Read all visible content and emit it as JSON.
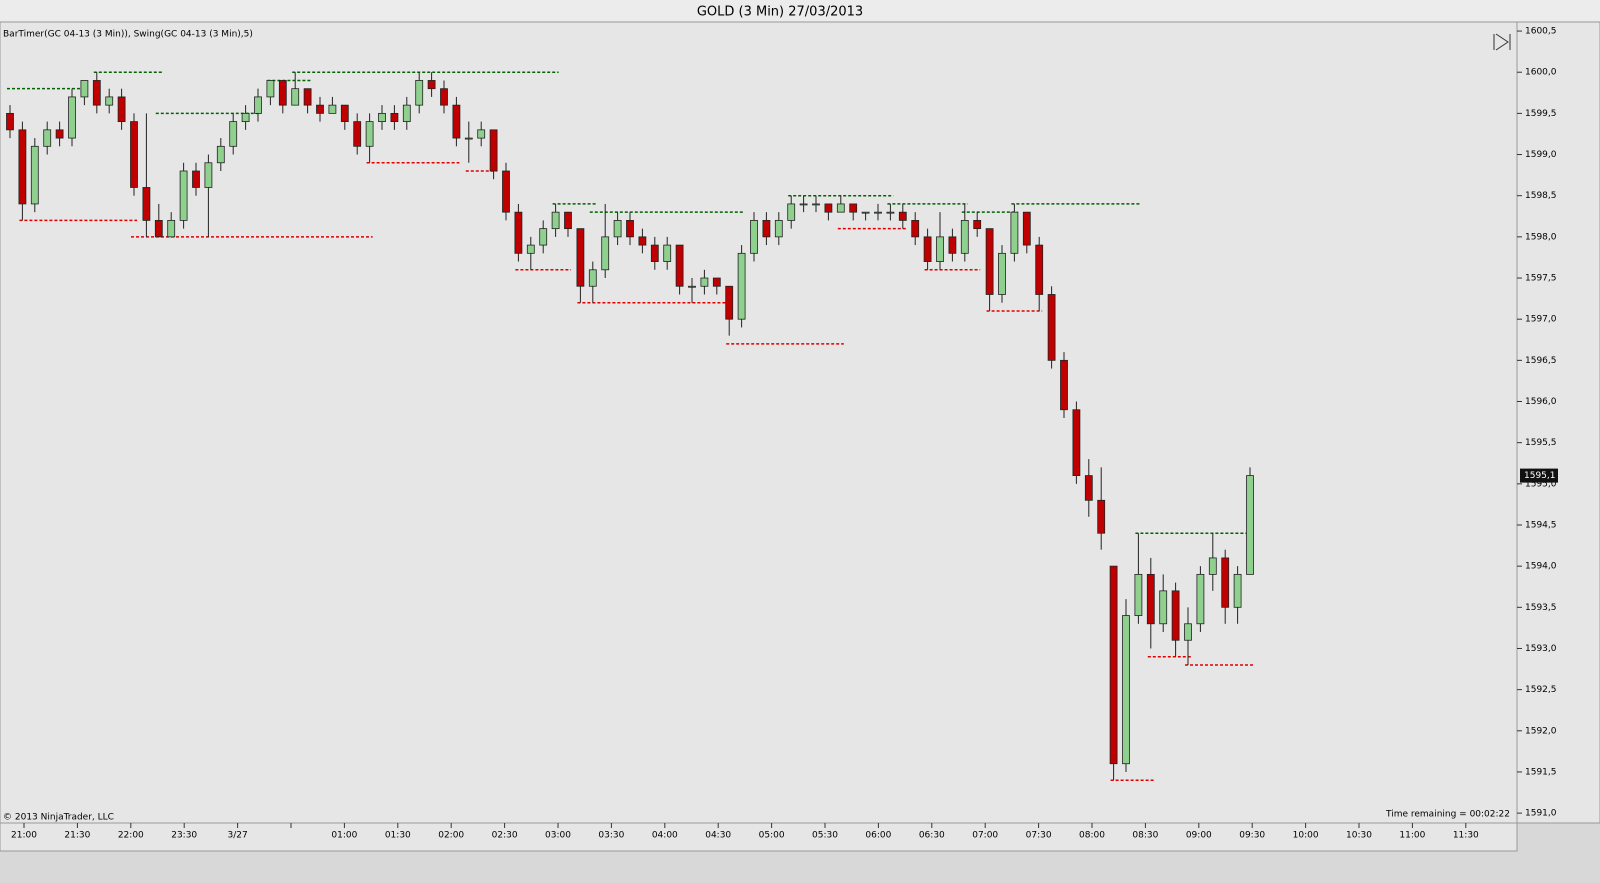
{
  "chart_data": {
    "type": "candlestick",
    "title": "GOLD (3 Min)  27/03/2013",
    "subtitle": "BarTimer(GC 04-13 (3 Min)), Swing(GC 04-13 (3 Min),5)",
    "annotations": {
      "copyright": "© 2013 NinjaTrader, LLC",
      "timer": "Time remaining = 00:02:22"
    },
    "up_color": "#8fd08f",
    "down_color": "#c00000",
    "swing_high_color": "#006400",
    "swing_low_color": "#e00000",
    "ylim": [
      1590.88,
      1600.61
    ],
    "yticks": [
      {
        "value": 1591.0,
        "label": "1591,0"
      },
      {
        "value": 1591.5,
        "label": "1591,5"
      },
      {
        "value": 1592.0,
        "label": "1592,0"
      },
      {
        "value": 1592.5,
        "label": "1592,5"
      },
      {
        "value": 1593.0,
        "label": "1593,0"
      },
      {
        "value": 1593.5,
        "label": "1593,5"
      },
      {
        "value": 1594.0,
        "label": "1594,0"
      },
      {
        "value": 1594.5,
        "label": "1594,5"
      },
      {
        "value": 1595.0,
        "label": "1595,0"
      },
      {
        "value": 1595.5,
        "label": "1595,5"
      },
      {
        "value": 1596.0,
        "label": "1596,0"
      },
      {
        "value": 1596.5,
        "label": "1596,5"
      },
      {
        "value": 1597.0,
        "label": "1597,0"
      },
      {
        "value": 1597.5,
        "label": "1597,5"
      },
      {
        "value": 1598.0,
        "label": "1598,0"
      },
      {
        "value": 1598.5,
        "label": "1598,5"
      },
      {
        "value": 1599.0,
        "label": "1599,0"
      },
      {
        "value": 1599.5,
        "label": "1599,5"
      },
      {
        "value": 1600.0,
        "label": "1600,0"
      },
      {
        "value": 1600.5,
        "label": "1600,5"
      }
    ],
    "last_price": {
      "value": 1595.1,
      "label": "1595,1"
    },
    "xtick_labels": [
      "21:00",
      "21:30",
      "22:00",
      "23:30",
      "3/27",
      null,
      "01:00",
      "01:30",
      "02:00",
      "02:30",
      "03:00",
      "03:30",
      "04:00",
      "04:30",
      "05:00",
      "05:30",
      "06:00",
      "06:30",
      "07:00",
      "07:30",
      "08:00",
      "08:30",
      "09:00",
      "09:30",
      "10:00",
      "10:30",
      "11:00",
      "11:30"
    ],
    "ohlc": [
      [
        1599.5,
        1599.6,
        1599.2,
        1599.3
      ],
      [
        1599.3,
        1599.4,
        1598.2,
        1598.4
      ],
      [
        1598.4,
        1599.2,
        1598.3,
        1599.1
      ],
      [
        1599.1,
        1599.4,
        1599.0,
        1599.3
      ],
      [
        1599.3,
        1599.4,
        1599.1,
        1599.2
      ],
      [
        1599.2,
        1599.8,
        1599.1,
        1599.7
      ],
      [
        1599.7,
        1599.9,
        1599.6,
        1599.9
      ],
      [
        1599.9,
        1600.0,
        1599.5,
        1599.6
      ],
      [
        1599.6,
        1599.8,
        1599.5,
        1599.7
      ],
      [
        1599.7,
        1599.8,
        1599.3,
        1599.4
      ],
      [
        1599.4,
        1599.5,
        1598.5,
        1598.6
      ],
      [
        1598.6,
        1599.5,
        1598.0,
        1598.2
      ],
      [
        1598.2,
        1598.4,
        1598.0,
        1598.0
      ],
      [
        1598.0,
        1598.3,
        1598.0,
        1598.2
      ],
      [
        1598.2,
        1598.9,
        1598.1,
        1598.8
      ],
      [
        1598.8,
        1598.9,
        1598.5,
        1598.6
      ],
      [
        1598.6,
        1599.0,
        1598.0,
        1598.9
      ],
      [
        1598.9,
        1599.2,
        1598.8,
        1599.1
      ],
      [
        1599.1,
        1599.5,
        1599.0,
        1599.4
      ],
      [
        1599.4,
        1599.6,
        1599.3,
        1599.5
      ],
      [
        1599.5,
        1599.8,
        1599.4,
        1599.7
      ],
      [
        1599.7,
        1599.9,
        1599.6,
        1599.9
      ],
      [
        1599.9,
        1599.9,
        1599.5,
        1599.6
      ],
      [
        1599.6,
        1600.0,
        1599.6,
        1599.8
      ],
      [
        1599.8,
        1599.8,
        1599.5,
        1599.6
      ],
      [
        1599.6,
        1599.7,
        1599.4,
        1599.5
      ],
      [
        1599.5,
        1599.7,
        1599.5,
        1599.6
      ],
      [
        1599.6,
        1599.6,
        1599.3,
        1599.4
      ],
      [
        1599.4,
        1599.5,
        1599.0,
        1599.1
      ],
      [
        1599.1,
        1599.5,
        1598.9,
        1599.4
      ],
      [
        1599.4,
        1599.6,
        1599.3,
        1599.5
      ],
      [
        1599.5,
        1599.6,
        1599.3,
        1599.4
      ],
      [
        1599.4,
        1599.7,
        1599.3,
        1599.6
      ],
      [
        1599.6,
        1600.0,
        1599.5,
        1599.9
      ],
      [
        1599.9,
        1600.0,
        1599.7,
        1599.8
      ],
      [
        1599.8,
        1599.9,
        1599.5,
        1599.6
      ],
      [
        1599.6,
        1599.7,
        1599.1,
        1599.2
      ],
      [
        1599.2,
        1599.4,
        1598.9,
        1599.2
      ],
      [
        1599.2,
        1599.4,
        1599.1,
        1599.3
      ],
      [
        1599.3,
        1599.3,
        1598.7,
        1598.8
      ],
      [
        1598.8,
        1598.9,
        1598.2,
        1598.3
      ],
      [
        1598.3,
        1598.4,
        1597.7,
        1597.8
      ],
      [
        1597.8,
        1598.0,
        1597.6,
        1597.9
      ],
      [
        1597.9,
        1598.2,
        1597.8,
        1598.1
      ],
      [
        1598.1,
        1598.4,
        1598.0,
        1598.3
      ],
      [
        1598.3,
        1598.3,
        1598.0,
        1598.1
      ],
      [
        1598.1,
        1598.1,
        1597.2,
        1597.4
      ],
      [
        1597.4,
        1597.7,
        1597.2,
        1597.6
      ],
      [
        1597.6,
        1598.4,
        1597.5,
        1598.0
      ],
      [
        1598.0,
        1598.3,
        1597.9,
        1598.2
      ],
      [
        1598.2,
        1598.3,
        1597.9,
        1598.0
      ],
      [
        1598.0,
        1598.1,
        1597.8,
        1597.9
      ],
      [
        1597.9,
        1598.0,
        1597.6,
        1597.7
      ],
      [
        1597.7,
        1598.0,
        1597.6,
        1597.9
      ],
      [
        1597.9,
        1597.9,
        1597.3,
        1597.4
      ],
      [
        1597.4,
        1597.5,
        1597.2,
        1597.4
      ],
      [
        1597.4,
        1597.6,
        1597.3,
        1597.5
      ],
      [
        1597.5,
        1597.5,
        1597.3,
        1597.4
      ],
      [
        1597.4,
        1597.4,
        1596.8,
        1597.0
      ],
      [
        1597.0,
        1597.9,
        1596.9,
        1597.8
      ],
      [
        1597.8,
        1598.3,
        1597.7,
        1598.2
      ],
      [
        1598.2,
        1598.3,
        1597.9,
        1598.0
      ],
      [
        1598.0,
        1598.3,
        1597.9,
        1598.2
      ],
      [
        1598.2,
        1598.5,
        1598.1,
        1598.4
      ],
      [
        1598.4,
        1598.5,
        1598.3,
        1598.4
      ],
      [
        1598.4,
        1598.5,
        1598.3,
        1598.4
      ],
      [
        1598.4,
        1598.4,
        1598.2,
        1598.3
      ],
      [
        1598.3,
        1598.5,
        1598.3,
        1598.4
      ],
      [
        1598.4,
        1598.4,
        1598.2,
        1598.3
      ],
      [
        1598.3,
        1598.3,
        1598.2,
        1598.3
      ],
      [
        1598.3,
        1598.4,
        1598.2,
        1598.3
      ],
      [
        1598.3,
        1598.4,
        1598.2,
        1598.3
      ],
      [
        1598.3,
        1598.4,
        1598.1,
        1598.2
      ],
      [
        1598.2,
        1598.3,
        1597.9,
        1598.0
      ],
      [
        1598.0,
        1598.1,
        1597.6,
        1597.7
      ],
      [
        1597.7,
        1598.3,
        1597.6,
        1598.0
      ],
      [
        1598.0,
        1598.1,
        1597.7,
        1597.8
      ],
      [
        1597.8,
        1598.4,
        1597.7,
        1598.2
      ],
      [
        1598.2,
        1598.3,
        1598.0,
        1598.1
      ],
      [
        1598.1,
        1598.1,
        1597.1,
        1597.3
      ],
      [
        1597.3,
        1597.9,
        1597.2,
        1597.8
      ],
      [
        1597.8,
        1598.4,
        1597.7,
        1598.3
      ],
      [
        1598.3,
        1598.3,
        1597.8,
        1597.9
      ],
      [
        1597.9,
        1598.0,
        1597.1,
        1597.3
      ],
      [
        1597.3,
        1597.4,
        1596.4,
        1596.5
      ],
      [
        1596.5,
        1596.6,
        1595.8,
        1595.9
      ],
      [
        1595.9,
        1596.0,
        1595.0,
        1595.1
      ],
      [
        1595.1,
        1595.3,
        1594.6,
        1594.8
      ],
      [
        1594.8,
        1595.2,
        1594.2,
        1594.4
      ],
      [
        1594.0,
        1594.0,
        1591.4,
        1591.6
      ],
      [
        1591.6,
        1593.6,
        1591.5,
        1593.4
      ],
      [
        1593.4,
        1594.4,
        1593.3,
        1593.9
      ],
      [
        1593.9,
        1594.1,
        1593.0,
        1593.3
      ],
      [
        1593.3,
        1593.9,
        1593.2,
        1593.7
      ],
      [
        1593.7,
        1593.8,
        1592.9,
        1593.1
      ],
      [
        1593.1,
        1593.5,
        1592.8,
        1593.3
      ],
      [
        1593.3,
        1594.0,
        1593.2,
        1593.9
      ],
      [
        1593.9,
        1594.4,
        1593.7,
        1594.1
      ],
      [
        1594.1,
        1594.2,
        1593.3,
        1593.5
      ],
      [
        1593.5,
        1594.0,
        1593.3,
        1593.9
      ],
      [
        1593.9,
        1595.2,
        1593.9,
        1595.1
      ]
    ],
    "swing_highs": [
      [
        1599.8,
        0,
        6
      ],
      [
        1600.0,
        7,
        12
      ],
      [
        1599.5,
        12,
        20
      ],
      [
        1599.9,
        21,
        24
      ],
      [
        1600.0,
        23,
        44
      ],
      [
        1598.4,
        44,
        47
      ],
      [
        1598.3,
        47,
        59
      ],
      [
        1598.5,
        63,
        71
      ],
      [
        1598.4,
        71,
        77
      ],
      [
        1598.3,
        77,
        81
      ],
      [
        1598.4,
        81,
        91
      ],
      [
        1594.4,
        91,
        100
      ]
    ],
    "swing_lows": [
      [
        1598.2,
        1,
        10
      ],
      [
        1598.0,
        10,
        29
      ],
      [
        1598.9,
        29,
        36
      ],
      [
        1598.8,
        37,
        39
      ],
      [
        1597.6,
        41,
        45
      ],
      [
        1597.2,
        46,
        58
      ],
      [
        1596.7,
        58,
        67
      ],
      [
        1598.1,
        67,
        72
      ],
      [
        1597.6,
        74,
        78
      ],
      [
        1597.1,
        79,
        83
      ],
      [
        1591.4,
        89,
        92
      ],
      [
        1592.9,
        92,
        95
      ],
      [
        1592.8,
        95,
        100
      ]
    ]
  }
}
